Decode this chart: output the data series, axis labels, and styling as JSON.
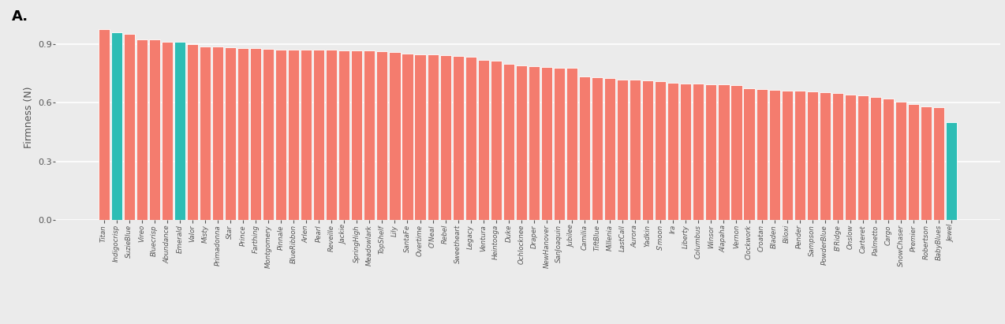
{
  "panel_label": "A.",
  "ylabel": "Firmness (N)",
  "ylim": [
    0.0,
    1.05
  ],
  "yticks": [
    0.0,
    0.3,
    0.6,
    0.9
  ],
  "bar_color_salmon": "#F47C6E",
  "bar_color_teal": "#2DBDB5",
  "background_color": "#EBEBEB",
  "grid_color": "#FFFFFF",
  "fig_facecolor": "#EBEBEB",
  "cultivars": [
    "Titan",
    "Indigocrisp",
    "SuzieBlue",
    "Vireo",
    "Bluecrisp",
    "Abundance",
    "Emerald",
    "Valor",
    "Misty",
    "Primadonna",
    "Star",
    "Prince",
    "Farthing",
    "Montgomery",
    "Pinnale",
    "BlueRibbon",
    "Arlen",
    "Pearl",
    "Reveille",
    "Jackie",
    "SpringHigh",
    "Meadowlark",
    "TopShelf",
    "Lily",
    "SantaFe",
    "Overtime",
    "O'Neal",
    "Rebel",
    "Sweetheart",
    "Legacy",
    "Ventura",
    "Heintooga",
    "Duke",
    "Ochlocknee",
    "Draper",
    "NewHanover",
    "SanJoaquin",
    "Jubilee",
    "Camilia",
    "TiftBlue",
    "Millenia",
    "LastCall",
    "Aurora",
    "Yadkin",
    "S'moon",
    "Ira",
    "Liberty",
    "Columbus",
    "Winsor",
    "Alapaha",
    "Vernon",
    "Clockwork",
    "Croatan",
    "Bladen",
    "Biloxi",
    "Pender",
    "Sampson",
    "PowderBlue",
    "B'Ridge",
    "Onslow",
    "Carteret",
    "Palmetto",
    "Cargo",
    "SnowChaser",
    "Premier",
    "Robertson",
    "BabyBlues",
    "Jewel"
  ],
  "values": [
    0.975,
    0.96,
    0.95,
    0.924,
    0.922,
    0.913,
    0.911,
    0.9,
    0.888,
    0.887,
    0.885,
    0.878,
    0.878,
    0.873,
    0.872,
    0.872,
    0.872,
    0.871,
    0.87,
    0.868,
    0.866,
    0.866,
    0.862,
    0.858,
    0.85,
    0.848,
    0.845,
    0.843,
    0.837,
    0.834,
    0.82,
    0.815,
    0.8,
    0.79,
    0.785,
    0.782,
    0.78,
    0.778,
    0.735,
    0.73,
    0.725,
    0.72,
    0.718,
    0.715,
    0.712,
    0.7,
    0.698,
    0.697,
    0.695,
    0.693,
    0.69,
    0.675,
    0.67,
    0.665,
    0.663,
    0.66,
    0.657,
    0.653,
    0.648,
    0.642,
    0.638,
    0.63,
    0.622,
    0.607,
    0.592,
    0.582,
    0.578,
    0.5
  ],
  "teal_indices": [
    1,
    6,
    67
  ],
  "label_fontsize": 6.2,
  "ylabel_fontsize": 9,
  "ytick_fontsize": 8
}
